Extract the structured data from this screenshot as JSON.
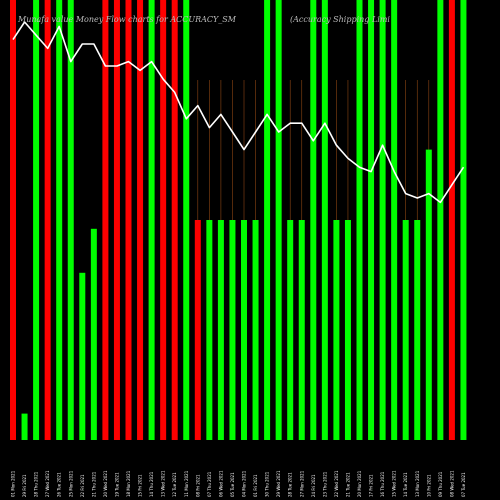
{
  "chart_data": {
    "type": "bar",
    "title": "Munafa value Money Flow charts for ACCURACY_SM",
    "subtitle": "(Accuracy Shipping Limi",
    "xlabel": "",
    "ylabel": "",
    "ylim": [
      0,
      100
    ],
    "grid": "vertical lines on later bars",
    "legend": "none",
    "colors": {
      "up": "#00ff00",
      "down": "#ff0000",
      "line": "#ffffff",
      "grid": "#8b4513",
      "background": "#000000"
    },
    "categories": [
      "01 Mon 2021",
      "29 Fri 2021",
      "28 Thu 2021",
      "27 Wed 2021",
      "26 Tue 2021",
      "25 Mon 2021",
      "22 Fri 2021",
      "21 Thu 2021",
      "20 Wed 2021",
      "19 Tue 2021",
      "18 Mon 2021",
      "15 Fri 2021",
      "14 Thu 2021",
      "13 Wed 2021",
      "12 Tue 2021",
      "11 Mon 2021",
      "08 Fri 2021",
      "07 Thu 2021",
      "06 Wed 2021",
      "05 Tue 2021",
      "04 Mon 2021",
      "01 Fri 2021",
      "30 Thu 2021",
      "29 Wed 2021",
      "28 Tue 2021",
      "27 Mon 2021",
      "24 Fri 2021",
      "23 Thu 2021",
      "22 Wed 2021",
      "21 Tue 2021",
      "20 Mon 2021",
      "17 Fri 2021",
      "16 Thu 2021",
      "15 Wed 2021",
      "14 Tue 2021",
      "13 Mon 2021",
      "10 Fri 2021",
      "09 Thu 2021",
      "08 Wed 2021",
      "07 Tue 2021"
    ],
    "series": [
      {
        "kind": "bar",
        "values": [
          100,
          6,
          100,
          100,
          100,
          100,
          38,
          48,
          100,
          100,
          100,
          100,
          100,
          100,
          100,
          100,
          50,
          50,
          50,
          50,
          50,
          50,
          100,
          100,
          50,
          50,
          100,
          100,
          50,
          50,
          100,
          100,
          100,
          100,
          50,
          50,
          66,
          100,
          100,
          100
        ],
        "directions": [
          "down",
          "up",
          "up",
          "down",
          "up",
          "up",
          "up",
          "up",
          "down",
          "down",
          "down",
          "down",
          "up",
          "down",
          "down",
          "up",
          "down",
          "up",
          "up",
          "up",
          "up",
          "up",
          "up",
          "up",
          "up",
          "up",
          "up",
          "up",
          "up",
          "up",
          "up",
          "up",
          "up",
          "up",
          "up",
          "up",
          "up",
          "up",
          "down",
          "up"
        ]
      },
      {
        "kind": "line",
        "values": [
          91,
          95,
          92,
          89,
          94,
          86,
          90,
          90,
          85,
          85,
          86,
          84,
          86,
          82,
          79,
          73,
          76,
          71,
          74,
          70,
          66,
          70,
          74,
          70,
          72,
          72,
          68,
          72,
          67,
          64,
          62,
          61,
          67,
          61,
          56,
          55,
          56,
          54,
          58,
          62
        ]
      }
    ]
  }
}
